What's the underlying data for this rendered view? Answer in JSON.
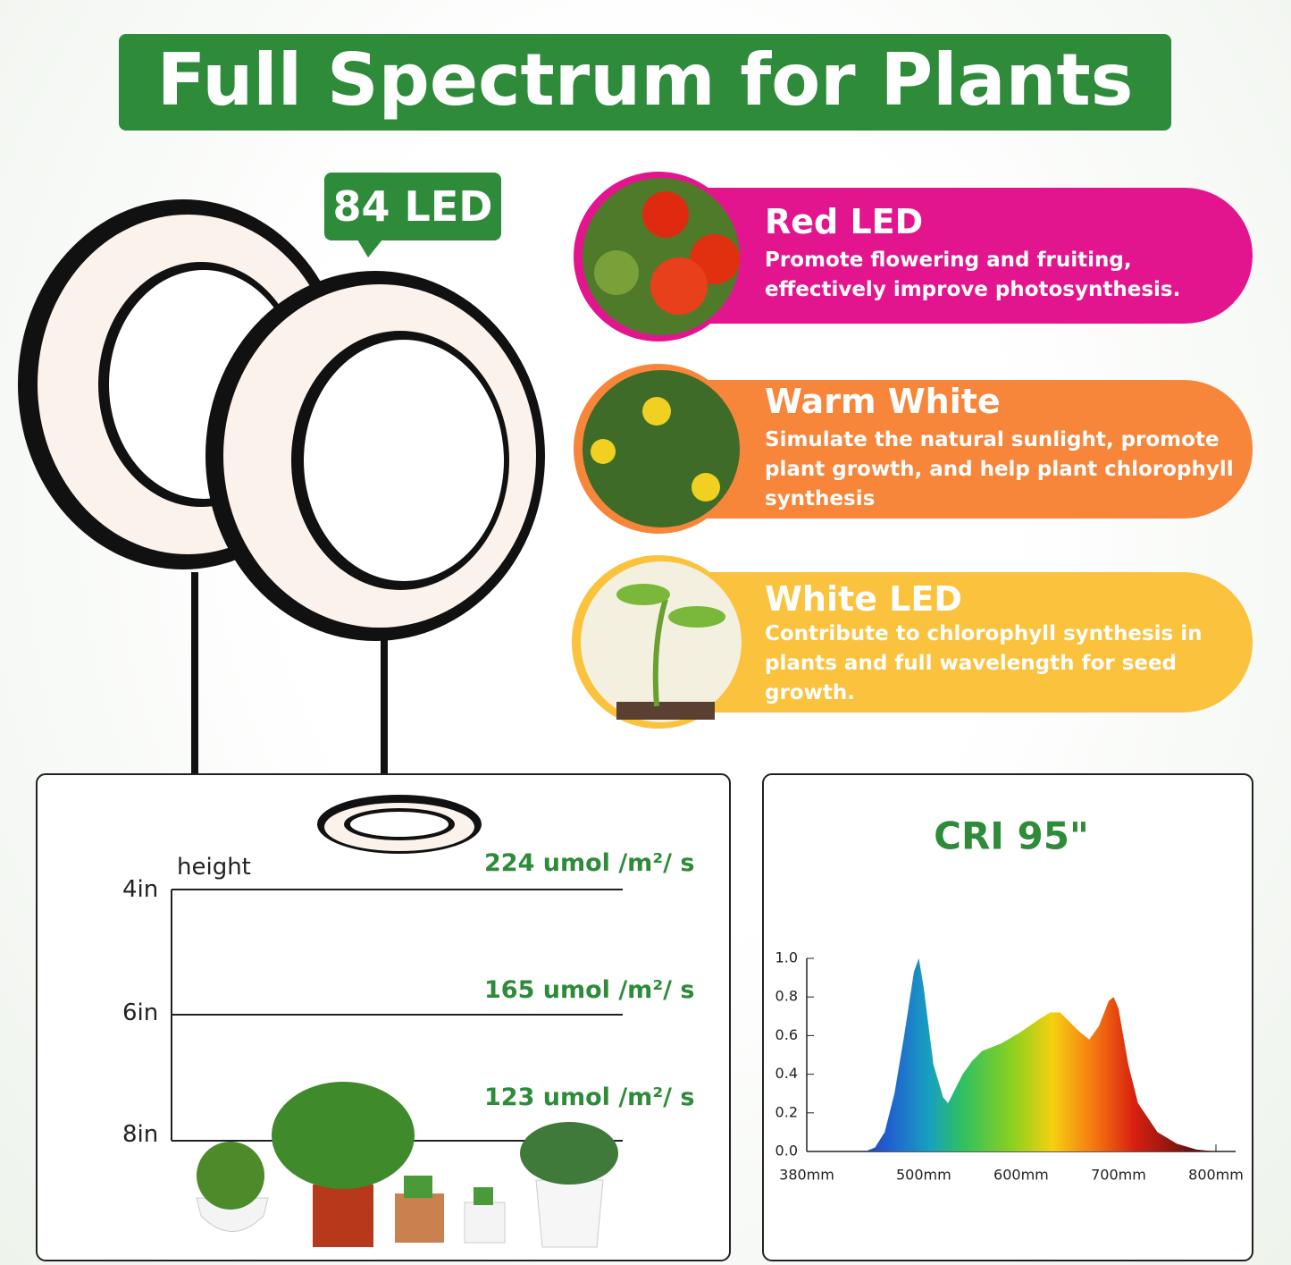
{
  "header": {
    "title": "Full Spectrum for Plants"
  },
  "badge": {
    "label": "84 LED"
  },
  "features": [
    {
      "title": "Red LED",
      "text": "Promote flowering and fruiting, effectively improve photosynthesis."
    },
    {
      "title": "Warm White",
      "text": "Simulate the natural sunlight, promote plant growth, and help plant chlorophyll synthesis"
    },
    {
      "title": "White LED",
      "text": "Contribute to chlorophyll synthesis in plants and full wavelength for seed growth."
    }
  ],
  "height_panel": {
    "axis_label": "height",
    "levels": [
      {
        "height": "4in",
        "ppfd": "224 umol /m²/ s"
      },
      {
        "height": "6in",
        "ppfd": "165 umol /m²/ s"
      },
      {
        "height": "8in",
        "ppfd": "123 umol /m²/ s"
      }
    ]
  },
  "chart_data": {
    "type": "area",
    "title": "CRI 95\"",
    "x": [
      380,
      440,
      450,
      460,
      470,
      480,
      490,
      495,
      500,
      510,
      520,
      525,
      530,
      540,
      550,
      560,
      580,
      600,
      620,
      630,
      640,
      650,
      660,
      670,
      680,
      690,
      695,
      700,
      710,
      720,
      740,
      760,
      780,
      800
    ],
    "values": [
      0,
      0,
      0.02,
      0.1,
      0.3,
      0.6,
      0.93,
      1.0,
      0.85,
      0.45,
      0.28,
      0.25,
      0.3,
      0.4,
      0.47,
      0.52,
      0.56,
      0.62,
      0.69,
      0.72,
      0.72,
      0.67,
      0.62,
      0.58,
      0.65,
      0.78,
      0.8,
      0.74,
      0.45,
      0.25,
      0.1,
      0.04,
      0.01,
      0
    ],
    "xlim": [
      380,
      800
    ],
    "xticks": [
      {
        "value": 380,
        "label": "380mm"
      },
      {
        "value": 500,
        "label": "500mm"
      },
      {
        "value": 600,
        "label": "600mm"
      },
      {
        "value": 700,
        "label": "700mm"
      },
      {
        "value": 800,
        "label": "800mm"
      }
    ],
    "ylim": [
      0,
      1
    ],
    "yticks": [
      {
        "value": 0,
        "label": "0.0"
      },
      0.2,
      0.4,
      0.6,
      0.8,
      {
        "value": 1,
        "label": "1.0"
      }
    ]
  }
}
